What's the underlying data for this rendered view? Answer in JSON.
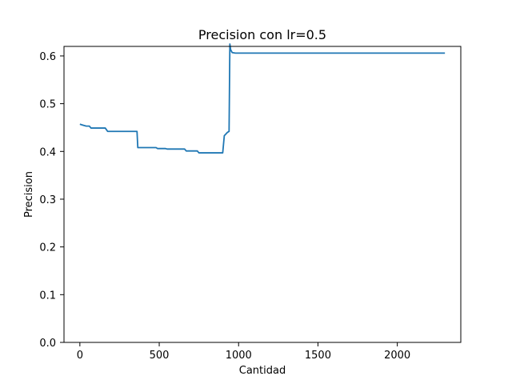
{
  "chart_data": {
    "type": "line",
    "title": "Precision con lr=0.5",
    "xlabel": "Cantidad",
    "ylabel": "Precision",
    "xlim": [
      -100,
      2400
    ],
    "ylim": [
      0.0,
      0.62
    ],
    "grid": false,
    "legend": "none",
    "xticks": [
      {
        "value": 0,
        "label": "0"
      },
      {
        "value": 500,
        "label": "500"
      },
      {
        "value": 1000,
        "label": "1000"
      },
      {
        "value": 1500,
        "label": "1500"
      },
      {
        "value": 2000,
        "label": "2000"
      }
    ],
    "yticks": [
      {
        "value": 0.0,
        "label": "0.0"
      },
      {
        "value": 0.1,
        "label": "0.1"
      },
      {
        "value": 0.2,
        "label": "0.2"
      },
      {
        "value": 0.3,
        "label": "0.3"
      },
      {
        "value": 0.4,
        "label": "0.4"
      },
      {
        "value": 0.5,
        "label": "0.5"
      },
      {
        "value": 0.6,
        "label": "0.6"
      }
    ],
    "series": [
      {
        "color": "#1f77b4",
        "x": [
          0,
          20,
          40,
          60,
          70,
          80,
          100,
          130,
          160,
          175,
          180,
          200,
          250,
          300,
          340,
          360,
          365,
          380,
          420,
          460,
          480,
          490,
          500,
          540,
          550,
          600,
          650,
          660,
          670,
          700,
          740,
          750,
          760,
          800,
          850,
          890,
          900,
          910,
          930,
          940,
          945,
          950,
          960,
          980,
          1000,
          1200,
          1500,
          1800,
          2100,
          2300
        ],
        "y": [
          0.457,
          0.455,
          0.453,
          0.453,
          0.449,
          0.449,
          0.449,
          0.449,
          0.449,
          0.442,
          0.442,
          0.442,
          0.442,
          0.442,
          0.442,
          0.442,
          0.408,
          0.408,
          0.408,
          0.408,
          0.408,
          0.406,
          0.406,
          0.406,
          0.405,
          0.405,
          0.405,
          0.405,
          0.401,
          0.401,
          0.401,
          0.397,
          0.397,
          0.397,
          0.397,
          0.397,
          0.397,
          0.433,
          0.44,
          0.442,
          0.625,
          0.613,
          0.607,
          0.606,
          0.606,
          0.606,
          0.606,
          0.606,
          0.606,
          0.606
        ]
      }
    ]
  }
}
